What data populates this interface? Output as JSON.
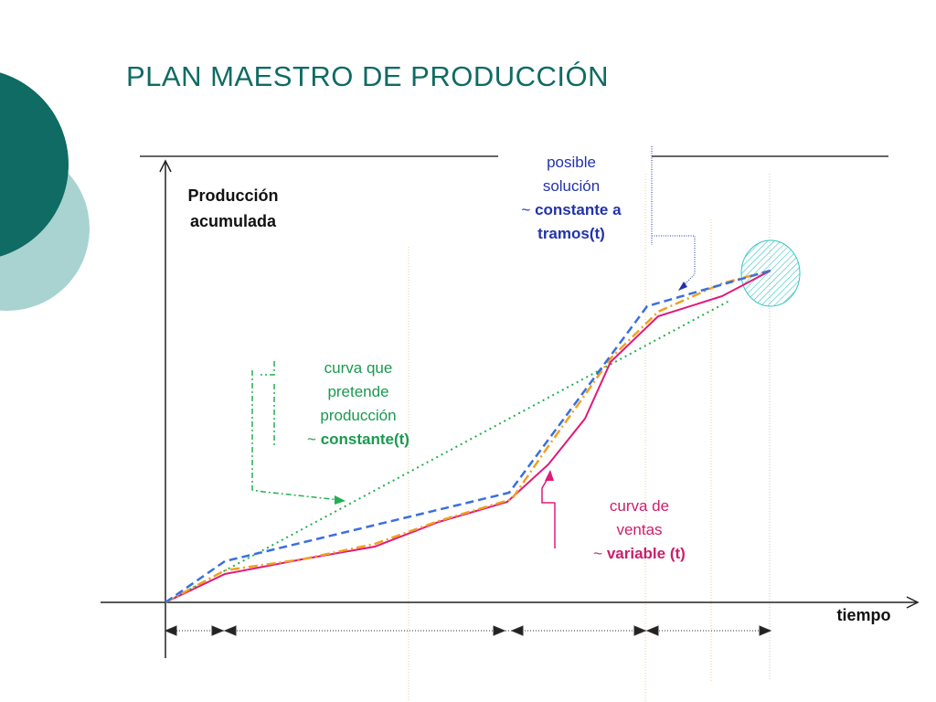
{
  "title": "PLAN MAESTRO DE PRODUCCIÓN",
  "axes": {
    "y_label_line1": "Producción",
    "y_label_line2": "acumulada",
    "x_label": "tiempo"
  },
  "annotations": {
    "solution": {
      "line1": "posible",
      "line2": "solución",
      "line3_prefix": "~ ",
      "line3_bold": "constante a",
      "line4_bold": "tramos(t)",
      "color": "#2233aa"
    },
    "intended": {
      "line1": "curva que",
      "line2": "pretende",
      "line3": "producción",
      "line4_prefix": "~ ",
      "line4_bold": "constante(t)",
      "color": "#1a9a50"
    },
    "sales": {
      "line1": "curva de",
      "line2": "ventas",
      "line3_prefix": "~ ",
      "line3_bold": "variable (t)",
      "color": "#cc1f6a"
    }
  },
  "colors": {
    "title": "#0f6b63",
    "circle_dark": "#0f6b63",
    "circle_light": "#a8d3d1",
    "sales_curve": "#e0197a",
    "piecewise_curve": "#3a6fe0",
    "alt_curve": "#f0a020",
    "intended_line": "#22b050",
    "target_circle": "#35c4c4"
  }
}
